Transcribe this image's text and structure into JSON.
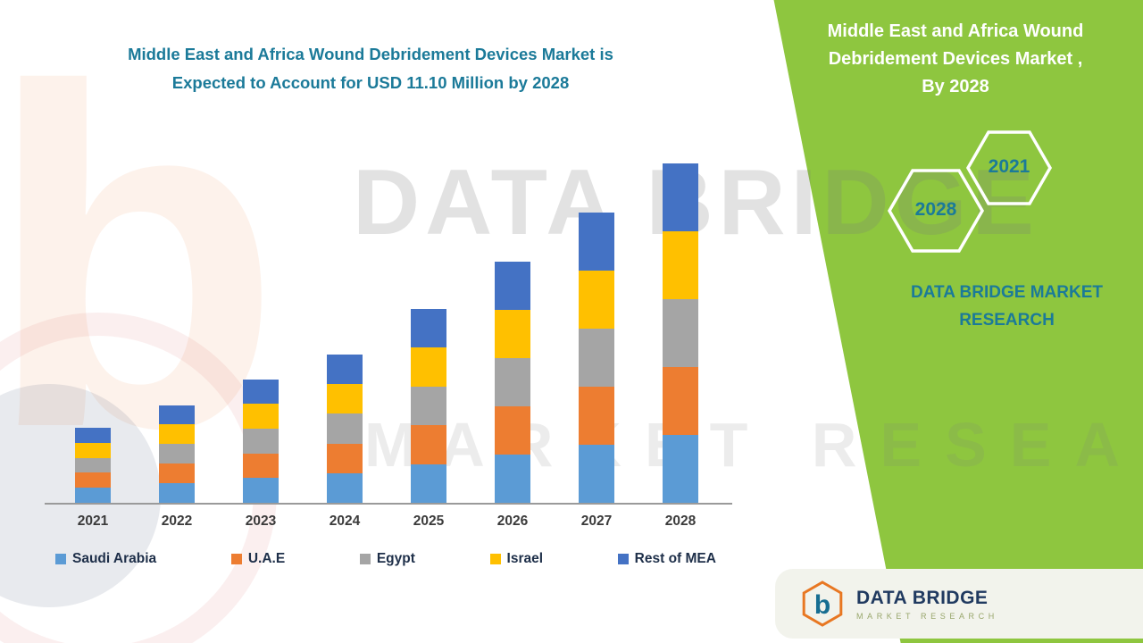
{
  "page": {
    "colors": {
      "green": "#8EC63F",
      "teal": "#1B7A99",
      "navy": "#203A60"
    }
  },
  "left": {
    "title_lines": [
      "Middle East and Africa Wound Debridement Devices Market is",
      "Expected to Account for USD 11.10 Million by 2028"
    ]
  },
  "right_panel": {
    "title_lines": [
      "Middle East and Africa Wound",
      "Debridement Devices Market ,",
      "By 2028"
    ],
    "hexagons": [
      {
        "label": "2021"
      },
      {
        "label": "2028"
      }
    ],
    "brand_lines": [
      "DATA BRIDGE MARKET",
      "RESEARCH"
    ]
  },
  "watermark": {
    "line1": "DATA BRIDGE",
    "line2": "MARKET RESEARCH",
    "logo_glyph": "b"
  },
  "footer_logo": {
    "glyph": "b",
    "name": "DATA BRIDGE",
    "subname": "MARKET RESEARCH"
  },
  "chart_data": {
    "type": "bar",
    "stacked": true,
    "title": "Middle East and Africa Wound Debridement Devices Market is Expected to Account for USD 11.10 Million by 2028",
    "unit": "USD Million",
    "categories": [
      "2021",
      "2022",
      "2023",
      "2024",
      "2025",
      "2026",
      "2027",
      "2028"
    ],
    "series": [
      {
        "name": "Saudi Arabia",
        "color": "#5B9BD5",
        "values": [
          0.49,
          0.64,
          0.81,
          0.97,
          1.27,
          1.58,
          1.9,
          2.22
        ]
      },
      {
        "name": "U.A.E",
        "color": "#ED7D31",
        "values": [
          0.49,
          0.64,
          0.81,
          0.97,
          1.27,
          1.58,
          1.9,
          2.22
        ]
      },
      {
        "name": "Egypt",
        "color": "#A5A5A5",
        "values": [
          0.49,
          0.64,
          0.81,
          0.97,
          1.27,
          1.58,
          1.9,
          2.22
        ]
      },
      {
        "name": "Israel",
        "color": "#FFC000",
        "values": [
          0.49,
          0.64,
          0.81,
          0.97,
          1.27,
          1.58,
          1.9,
          2.22
        ]
      },
      {
        "name": "Rest of MEA",
        "color": "#4472C4",
        "values": [
          0.49,
          0.64,
          0.81,
          0.97,
          1.27,
          1.58,
          1.9,
          2.22
        ]
      }
    ],
    "totals": [
      2.45,
      3.2,
      4.05,
      4.85,
      6.35,
      7.9,
      9.5,
      11.1
    ],
    "ylim": [
      0,
      11.1
    ],
    "xlabel": "",
    "ylabel": "",
    "grid": false,
    "y_axis_visible": false,
    "legend_position": "bottom"
  }
}
